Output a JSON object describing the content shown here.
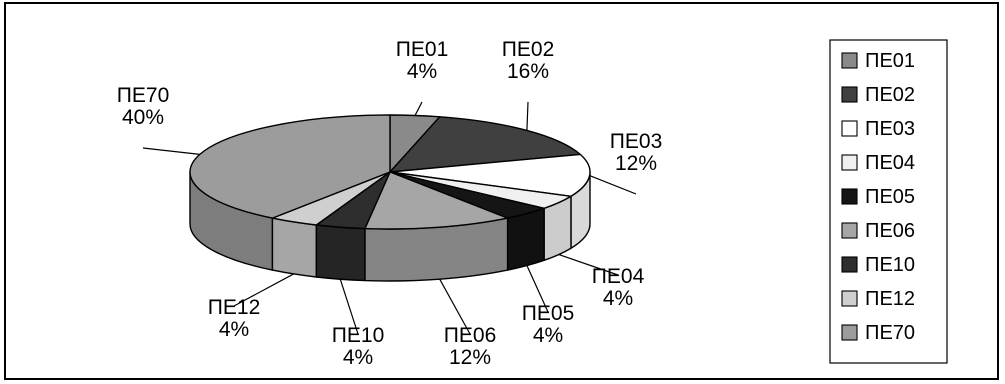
{
  "chart_data": {
    "type": "pie",
    "style": "3d-exploded-perspective",
    "legend_position": "right",
    "categories": [
      "ΠΕ01",
      "ΠΕ02",
      "ΠΕ03",
      "ΠΕ04",
      "ΠΕ05",
      "ΠΕ06",
      "ΠΕ10",
      "ΠΕ12",
      "ΠΕ70"
    ],
    "values": [
      4,
      16,
      12,
      4,
      4,
      12,
      4,
      4,
      40
    ],
    "value_labels": [
      "4%",
      "16%",
      "12%",
      "4%",
      "4%",
      "12%",
      "4%",
      "4%",
      "40%"
    ],
    "colors": [
      "#8a8a8a",
      "#404040",
      "#ffffff",
      "#f0f0f0",
      "#151515",
      "#a6a6a6",
      "#2e2e2e",
      "#cfcfcf",
      "#9c9c9c"
    ]
  }
}
